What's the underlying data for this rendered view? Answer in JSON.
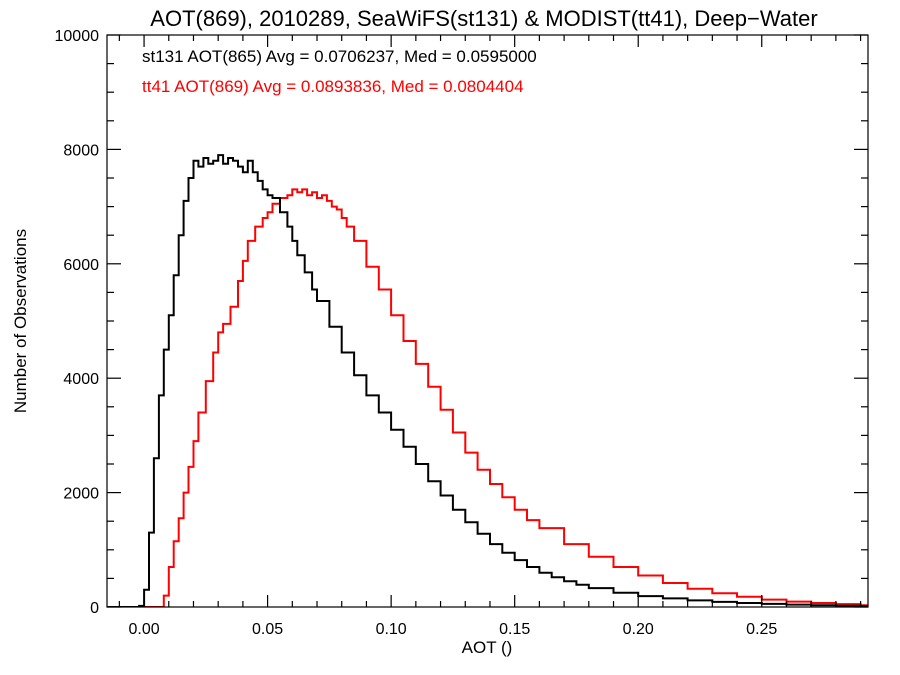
{
  "chart_data": {
    "type": "line",
    "style": "step-histogram",
    "title": "AOT(869), 2010289, SeaWiFS(st131) & MODIST(tt41), Deep−Water",
    "xlabel": "AOT ()",
    "ylabel": "Number of Observations",
    "xlim": [
      -0.015,
      0.293
    ],
    "ylim": [
      0,
      10000
    ],
    "x_ticks": [
      0.0,
      0.05,
      0.1,
      0.15,
      0.2,
      0.25
    ],
    "x_tick_labels": [
      "0.00",
      "0.05",
      "0.10",
      "0.15",
      "0.20",
      "0.25"
    ],
    "y_ticks": [
      0,
      2000,
      4000,
      6000,
      8000,
      10000
    ],
    "y_tick_labels": [
      "0",
      "2000",
      "4000",
      "6000",
      "8000",
      "10000"
    ],
    "grid": false,
    "annotations": [
      {
        "text": "st131 AOT(865) Avg = 0.0706237, Med = 0.0595000",
        "color": "#000000"
      },
      {
        "text": "tt41 AOT(869) Avg = 0.0893836, Med = 0.0804404",
        "color": "#ff0000"
      }
    ],
    "series": [
      {
        "color": "#000000",
        "x": [
          -0.015,
          -0.002,
          0.0,
          0.002,
          0.004,
          0.006,
          0.008,
          0.01,
          0.012,
          0.014,
          0.016,
          0.018,
          0.02,
          0.022,
          0.024,
          0.026,
          0.028,
          0.03,
          0.032,
          0.034,
          0.036,
          0.038,
          0.04,
          0.042,
          0.044,
          0.046,
          0.048,
          0.05,
          0.052,
          0.055,
          0.058,
          0.06,
          0.062,
          0.065,
          0.068,
          0.07,
          0.075,
          0.08,
          0.085,
          0.09,
          0.095,
          0.1,
          0.105,
          0.11,
          0.115,
          0.12,
          0.125,
          0.13,
          0.135,
          0.14,
          0.145,
          0.15,
          0.155,
          0.16,
          0.165,
          0.17,
          0.175,
          0.18,
          0.19,
          0.2,
          0.21,
          0.22,
          0.23,
          0.24,
          0.25,
          0.26,
          0.27,
          0.28,
          0.29
        ],
        "y": [
          0,
          20,
          300,
          1300,
          2600,
          3700,
          4500,
          5100,
          5800,
          6500,
          7100,
          7500,
          7800,
          7700,
          7850,
          7750,
          7800,
          7900,
          7750,
          7850,
          7800,
          7700,
          7600,
          7800,
          7600,
          7450,
          7300,
          7200,
          7150,
          6900,
          6650,
          6400,
          6150,
          5850,
          5550,
          5350,
          4900,
          4450,
          4050,
          3700,
          3400,
          3100,
          2800,
          2500,
          2200,
          1950,
          1700,
          1480,
          1280,
          1100,
          950,
          820,
          700,
          600,
          520,
          450,
          390,
          330,
          250,
          190,
          150,
          115,
          90,
          70,
          55,
          42,
          32,
          22,
          15
        ]
      },
      {
        "color": "#ff0000",
        "x": [
          -0.015,
          0.008,
          0.01,
          0.012,
          0.014,
          0.016,
          0.018,
          0.02,
          0.022,
          0.025,
          0.028,
          0.03,
          0.032,
          0.035,
          0.038,
          0.04,
          0.042,
          0.045,
          0.048,
          0.05,
          0.052,
          0.055,
          0.058,
          0.06,
          0.062,
          0.064,
          0.066,
          0.068,
          0.07,
          0.072,
          0.074,
          0.076,
          0.078,
          0.08,
          0.082,
          0.085,
          0.09,
          0.095,
          0.1,
          0.105,
          0.11,
          0.115,
          0.12,
          0.125,
          0.13,
          0.135,
          0.14,
          0.145,
          0.15,
          0.155,
          0.16,
          0.17,
          0.18,
          0.19,
          0.2,
          0.21,
          0.22,
          0.23,
          0.24,
          0.25,
          0.26,
          0.27,
          0.28,
          0.29
        ],
        "y": [
          0,
          200,
          700,
          1150,
          1550,
          2000,
          2450,
          2900,
          3400,
          3950,
          4450,
          4800,
          4950,
          5250,
          5700,
          6050,
          6400,
          6650,
          6800,
          6900,
          7050,
          7150,
          7200,
          7300,
          7250,
          7300,
          7200,
          7250,
          7150,
          7200,
          7100,
          7000,
          6950,
          6800,
          6650,
          6400,
          5950,
          5550,
          5100,
          4650,
          4250,
          3850,
          3450,
          3050,
          2700,
          2400,
          2150,
          1920,
          1700,
          1520,
          1380,
          1100,
          880,
          700,
          550,
          420,
          320,
          240,
          180,
          130,
          95,
          70,
          50,
          30
        ]
      }
    ]
  }
}
